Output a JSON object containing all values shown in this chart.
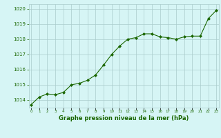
{
  "x": [
    0,
    1,
    2,
    3,
    4,
    5,
    6,
    7,
    8,
    9,
    10,
    11,
    12,
    13,
    14,
    15,
    16,
    17,
    18,
    19,
    20,
    21,
    22,
    23
  ],
  "y": [
    1013.7,
    1014.2,
    1014.4,
    1014.35,
    1014.5,
    1015.0,
    1015.1,
    1015.3,
    1015.65,
    1016.3,
    1017.0,
    1017.55,
    1018.0,
    1018.1,
    1018.35,
    1018.35,
    1018.15,
    1018.1,
    1018.0,
    1018.15,
    1018.2,
    1018.2,
    1019.35,
    1019.9
  ],
  "line_color": "#1a6600",
  "marker_color": "#1a6600",
  "bg_color": "#d6f5f5",
  "grid_color": "#aacccc",
  "title": "Graphe pression niveau de la mer (hPa)",
  "title_color": "#1a6600",
  "xlabel_ticks": [
    0,
    1,
    2,
    3,
    4,
    5,
    6,
    7,
    8,
    9,
    10,
    11,
    12,
    13,
    14,
    15,
    16,
    17,
    18,
    19,
    20,
    21,
    22,
    23
  ],
  "yticks": [
    1014,
    1015,
    1016,
    1017,
    1018,
    1019,
    1020
  ],
  "ylim": [
    1013.5,
    1020.3
  ],
  "xlim": [
    -0.3,
    23.3
  ],
  "figsize": [
    3.2,
    2.0
  ],
  "dpi": 100
}
